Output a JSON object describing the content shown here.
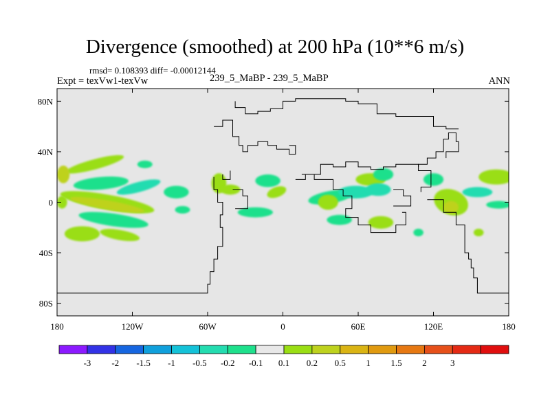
{
  "header": {
    "title": "Divergence (smoothed) at 200 hPa (10**6 m/s)",
    "stats": "rmsd= 0.108393 diff= -0.00012144",
    "left_label": "Expt = texVw1-texVw",
    "center_label": "239_5_MaBP - 239_5_MaBP",
    "right_label": "ANN"
  },
  "chart_data": {
    "type": "contour",
    "title": "Divergence (smoothed) at 200 hPa (10**6 m/s)",
    "xlabel": "",
    "ylabel": "",
    "xlim": [
      -180,
      180
    ],
    "ylim": [
      -90,
      90
    ],
    "x_ticks": [
      {
        "value": -180,
        "label": "180"
      },
      {
        "value": -120,
        "label": "120W"
      },
      {
        "value": -60,
        "label": "60W"
      },
      {
        "value": 0,
        "label": "0"
      },
      {
        "value": 60,
        "label": "60E"
      },
      {
        "value": 120,
        "label": "120E"
      },
      {
        "value": 180,
        "label": "180"
      }
    ],
    "y_ticks": [
      {
        "value": 80,
        "label": "80N"
      },
      {
        "value": 40,
        "label": "40N"
      },
      {
        "value": 0,
        "label": "0"
      },
      {
        "value": -40,
        "label": "40S"
      },
      {
        "value": -80,
        "label": "80S"
      }
    ],
    "colorbar": {
      "colors": [
        "#8c1aff",
        "#3232e6",
        "#1666e0",
        "#10a0dc",
        "#14c2d8",
        "#24dcb0",
        "#1ee08c",
        "#e8e8e8",
        "#9ade14",
        "#bed21e",
        "#dab414",
        "#e09a10",
        "#e67812",
        "#e6501a",
        "#e42a14",
        "#e00e0e"
      ],
      "labels": [
        "-3",
        "-2",
        "-1.5",
        "-1",
        "-0.5",
        "-0.2",
        "-0.1",
        "0.1",
        "0.2",
        "0.5",
        "1",
        "1.5",
        "2",
        "3"
      ]
    },
    "blobs": [
      {
        "lon": -150,
        "lat": 30,
        "rx": 24,
        "ry": 4,
        "rot": -15,
        "color": "#9ade14"
      },
      {
        "lon": -145,
        "lat": 15,
        "rx": 22,
        "ry": 5,
        "rot": -5,
        "color": "#1ee08c"
      },
      {
        "lon": -115,
        "lat": 12,
        "rx": 18,
        "ry": 4,
        "rot": -15,
        "color": "#24dcb0"
      },
      {
        "lon": -140,
        "lat": 0,
        "rx": 38,
        "ry": 6,
        "rot": 10,
        "color": "#9ade14"
      },
      {
        "lon": -140,
        "lat": -2,
        "rx": 30,
        "ry": 3.5,
        "rot": 10,
        "color": "#bed21e"
      },
      {
        "lon": -135,
        "lat": -14,
        "rx": 28,
        "ry": 5,
        "rot": 8,
        "color": "#1ee08c"
      },
      {
        "lon": -160,
        "lat": -25,
        "rx": 14,
        "ry": 6,
        "rot": 0,
        "color": "#9ade14"
      },
      {
        "lon": -130,
        "lat": -26,
        "rx": 16,
        "ry": 4,
        "rot": 10,
        "color": "#9ade14"
      },
      {
        "lon": -175,
        "lat": 22,
        "rx": 5,
        "ry": 7,
        "rot": 0,
        "color": "#bed21e"
      },
      {
        "lon": -176,
        "lat": 0,
        "rx": 4,
        "ry": 5,
        "rot": 0,
        "color": "#9ade14"
      },
      {
        "lon": -85,
        "lat": 8,
        "rx": 10,
        "ry": 5,
        "rot": 0,
        "color": "#1ee08c"
      },
      {
        "lon": -80,
        "lat": -6,
        "rx": 6,
        "ry": 3,
        "rot": 0,
        "color": "#1ee08c"
      },
      {
        "lon": -51,
        "lat": 15,
        "rx": 6,
        "ry": 8,
        "rot": 0,
        "color": "#9ade14"
      },
      {
        "lon": -42,
        "lat": 10,
        "rx": 8,
        "ry": 4,
        "rot": 0,
        "color": "#9ade14"
      },
      {
        "lon": -12,
        "lat": 17,
        "rx": 10,
        "ry": 5,
        "rot": 0,
        "color": "#1ee08c"
      },
      {
        "lon": -22,
        "lat": -8,
        "rx": 14,
        "ry": 4,
        "rot": 0,
        "color": "#1ee08c"
      },
      {
        "lon": -5,
        "lat": 8,
        "rx": 8,
        "ry": 4,
        "rot": -20,
        "color": "#9ade14"
      },
      {
        "lon": 38,
        "lat": 4,
        "rx": 18,
        "ry": 5,
        "rot": -10,
        "color": "#1ee08c"
      },
      {
        "lon": 36,
        "lat": 0,
        "rx": 8,
        "ry": 6,
        "rot": 0,
        "color": "#9ade14"
      },
      {
        "lon": 58,
        "lat": 8,
        "rx": 14,
        "ry": 5,
        "rot": 0,
        "color": "#24dcb0"
      },
      {
        "lon": 70,
        "lat": 18,
        "rx": 12,
        "ry": 5,
        "rot": 0,
        "color": "#9ade14"
      },
      {
        "lon": 80,
        "lat": 22,
        "rx": 8,
        "ry": 5,
        "rot": 0,
        "color": "#1ee08c"
      },
      {
        "lon": 76,
        "lat": 10,
        "rx": 10,
        "ry": 5,
        "rot": 0,
        "color": "#24dcb0"
      },
      {
        "lon": 78,
        "lat": -16,
        "rx": 10,
        "ry": 5,
        "rot": 0,
        "color": "#9ade14"
      },
      {
        "lon": 45,
        "lat": -14,
        "rx": 10,
        "ry": 4,
        "rot": 0,
        "color": "#1ee08c"
      },
      {
        "lon": 134,
        "lat": 0,
        "rx": 14,
        "ry": 10,
        "rot": 20,
        "color": "#9ade14"
      },
      {
        "lon": 134,
        "lat": -4,
        "rx": 6,
        "ry": 5,
        "rot": 0,
        "color": "#bed21e"
      },
      {
        "lon": 120,
        "lat": 18,
        "rx": 8,
        "ry": 5,
        "rot": 0,
        "color": "#1ee08c"
      },
      {
        "lon": 155,
        "lat": 8,
        "rx": 12,
        "ry": 4,
        "rot": 0,
        "color": "#24dcb0"
      },
      {
        "lon": 170,
        "lat": 20,
        "rx": 14,
        "ry": 6,
        "rot": 0,
        "color": "#9ade14"
      },
      {
        "lon": 172,
        "lat": -2,
        "rx": 10,
        "ry": 3,
        "rot": 0,
        "color": "#1ee08c"
      },
      {
        "lon": 108,
        "lat": -24,
        "rx": 4,
        "ry": 3,
        "rot": 0,
        "color": "#1ee08c"
      },
      {
        "lon": 156,
        "lat": -24,
        "rx": 4,
        "ry": 3,
        "rot": 0,
        "color": "#9ade14"
      },
      {
        "lon": -110,
        "lat": 30,
        "rx": 6,
        "ry": 3,
        "rot": 0,
        "color": "#1ee08c"
      }
    ],
    "coastlines": [
      [
        [
          -180,
          -72
        ],
        [
          -60,
          -72
        ],
        [
          -60,
          -65
        ],
        [
          -58,
          -65
        ],
        [
          -58,
          -55
        ],
        [
          -55,
          -55
        ],
        [
          -55,
          -45
        ],
        [
          -52,
          -45
        ],
        [
          -52,
          -35
        ],
        [
          -48,
          -35
        ],
        [
          -48,
          -20
        ],
        [
          -50,
          -20
        ],
        [
          -50,
          -10
        ],
        [
          -48,
          -10
        ],
        [
          -48,
          0
        ],
        [
          -52,
          0
        ],
        [
          -52,
          10
        ],
        [
          -55,
          10
        ],
        [
          -55,
          20
        ]
      ],
      [
        [
          -42,
          25
        ],
        [
          -42,
          18
        ],
        [
          -48,
          18
        ],
        [
          -48,
          22
        ]
      ],
      [
        [
          -38,
          -5
        ],
        [
          -28,
          -5
        ],
        [
          -28,
          5
        ],
        [
          -32,
          5
        ],
        [
          -32,
          10
        ],
        [
          -40,
          10
        ]
      ],
      [
        [
          -55,
          60
        ],
        [
          -48,
          60
        ],
        [
          -48,
          65
        ],
        [
          -40,
          65
        ],
        [
          -40,
          52
        ],
        [
          -35,
          52
        ],
        [
          -35,
          45
        ],
        [
          -32,
          45
        ],
        [
          -32,
          40
        ],
        [
          -28,
          40
        ],
        [
          -28,
          45
        ],
        [
          -20,
          45
        ],
        [
          -20,
          48
        ],
        [
          -12,
          48
        ],
        [
          -12,
          45
        ],
        [
          -5,
          45
        ],
        [
          -5,
          42
        ],
        [
          5,
          42
        ],
        [
          5,
          38
        ],
        [
          10,
          38
        ],
        [
          10,
          45
        ],
        [
          5,
          45
        ]
      ],
      [
        [
          -38,
          80
        ],
        [
          -38,
          75
        ],
        [
          -30,
          75
        ],
        [
          -30,
          70
        ],
        [
          -20,
          70
        ],
        [
          -20,
          72
        ],
        [
          -10,
          72
        ],
        [
          -10,
          74
        ],
        [
          0,
          74
        ],
        [
          0,
          80
        ],
        [
          10,
          80
        ],
        [
          10,
          82
        ],
        [
          50,
          82
        ],
        [
          50,
          80
        ],
        [
          60,
          80
        ],
        [
          60,
          78
        ],
        [
          75,
          78
        ],
        [
          75,
          70
        ],
        [
          90,
          70
        ],
        [
          90,
          68
        ],
        [
          120,
          68
        ],
        [
          120,
          60
        ],
        [
          130,
          60
        ],
        [
          130,
          58
        ],
        [
          140,
          58
        ]
      ],
      [
        [
          10,
          18
        ],
        [
          18,
          18
        ],
        [
          18,
          22
        ],
        [
          25,
          22
        ],
        [
          25,
          18
        ],
        [
          40,
          18
        ],
        [
          40,
          10
        ],
        [
          48,
          10
        ],
        [
          48,
          5
        ],
        [
          55,
          5
        ],
        [
          55,
          -5
        ],
        [
          50,
          -5
        ],
        [
          50,
          -12
        ],
        [
          60,
          -12
        ],
        [
          60,
          -18
        ],
        [
          70,
          -18
        ],
        [
          70,
          -24
        ],
        [
          90,
          -24
        ],
        [
          90,
          -18
        ],
        [
          98,
          -18
        ],
        [
          98,
          -8
        ],
        [
          95,
          -8
        ]
      ],
      [
        [
          15,
          22
        ],
        [
          30,
          22
        ],
        [
          30,
          30
        ],
        [
          40,
          30
        ],
        [
          40,
          28
        ],
        [
          50,
          28
        ],
        [
          50,
          32
        ],
        [
          60,
          32
        ],
        [
          60,
          28
        ],
        [
          70,
          28
        ],
        [
          70,
          26
        ],
        [
          80,
          26
        ],
        [
          80,
          28
        ],
        [
          90,
          28
        ],
        [
          90,
          30
        ],
        [
          108,
          30
        ],
        [
          108,
          25
        ],
        [
          118,
          25
        ],
        [
          118,
          12
        ],
        [
          110,
          12
        ],
        [
          110,
          8
        ]
      ],
      [
        [
          115,
          2
        ],
        [
          128,
          2
        ],
        [
          128,
          -8
        ],
        [
          138,
          -8
        ],
        [
          138,
          -18
        ],
        [
          145,
          -18
        ],
        [
          145,
          -40
        ],
        [
          148,
          -40
        ],
        [
          148,
          -45
        ],
        [
          150,
          -45
        ],
        [
          150,
          -52
        ],
        [
          152,
          -52
        ],
        [
          152,
          -60
        ],
        [
          155,
          -60
        ],
        [
          155,
          -72
        ],
        [
          180,
          -72
        ]
      ],
      [
        [
          108,
          28
        ],
        [
          108,
          30
        ],
        [
          115,
          30
        ],
        [
          115,
          35
        ],
        [
          122,
          35
        ],
        [
          122,
          40
        ],
        [
          128,
          40
        ],
        [
          128,
          50
        ],
        [
          132,
          50
        ],
        [
          132,
          55
        ],
        [
          138,
          55
        ],
        [
          138,
          48
        ],
        [
          140,
          48
        ],
        [
          140,
          40
        ],
        [
          130,
          40
        ],
        [
          130,
          35
        ]
      ],
      [
        [
          88,
          -3
        ],
        [
          102,
          -3
        ],
        [
          102,
          5
        ],
        [
          96,
          5
        ],
        [
          96,
          10
        ],
        [
          88,
          10
        ]
      ]
    ]
  }
}
